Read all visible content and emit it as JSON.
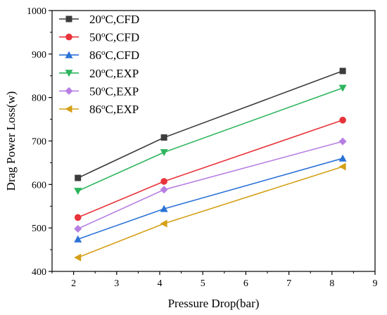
{
  "chart_data": {
    "type": "line",
    "xlabel": "Pressure Drop(bar)",
    "ylabel": "Drag Power Loss(w)",
    "xlim": [
      1.5,
      9
    ],
    "ylim": [
      400,
      1000
    ],
    "xticks": [
      2,
      3,
      4,
      5,
      6,
      7,
      8,
      9
    ],
    "yticks": [
      400,
      500,
      600,
      700,
      800,
      900,
      1000
    ],
    "grid": false,
    "legend_position": "top-left",
    "series": [
      {
        "name": "20°C,CFD",
        "name_main": "20",
        "name_sup": "o",
        "name_rest": "C,CFD",
        "color": "#3c3c3c",
        "marker": "square",
        "x": [
          2.1,
          4.1,
          8.25
        ],
        "y": [
          615,
          708,
          861
        ]
      },
      {
        "name": "50°C,CFD",
        "name_main": "50",
        "name_sup": "o",
        "name_rest": "C,CFD",
        "color": "#e8333a",
        "marker": "circle",
        "x": [
          2.1,
          4.1,
          8.25
        ],
        "y": [
          524,
          607,
          748
        ]
      },
      {
        "name": "86°C,CFD",
        "name_main": "86",
        "name_sup": "o",
        "name_rest": "C,CFD",
        "color": "#2a72d6",
        "marker": "triangle-up",
        "x": [
          2.1,
          4.1,
          8.25
        ],
        "y": [
          474,
          544,
          660
        ]
      },
      {
        "name": "20°C,EXP",
        "name_main": "20",
        "name_sup": "o",
        "name_rest": "C,EXP",
        "color": "#2db55d",
        "marker": "triangle-down",
        "x": [
          2.1,
          4.1,
          8.25
        ],
        "y": [
          585,
          674,
          822
        ]
      },
      {
        "name": "50°C,EXP",
        "name_main": "50",
        "name_sup": "o",
        "name_rest": "C,EXP",
        "color": "#b77fe3",
        "marker": "diamond",
        "x": [
          2.1,
          4.1,
          8.25
        ],
        "y": [
          498,
          588,
          699
        ]
      },
      {
        "name": "86°C,EXP",
        "name_main": "86",
        "name_sup": "o",
        "name_rest": "C,EXP",
        "color": "#d4a017",
        "marker": "triangle-left",
        "x": [
          2.1,
          4.1,
          8.25
        ],
        "y": [
          432,
          510,
          641
        ]
      }
    ]
  }
}
